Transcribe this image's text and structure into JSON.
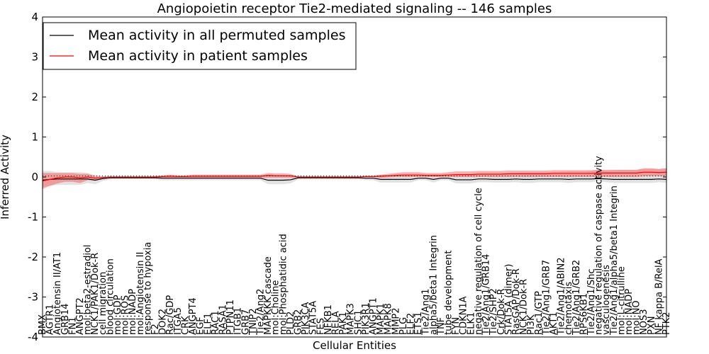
{
  "chart_data": {
    "type": "line",
    "title": "Angiopoietin receptor Tie2-mediated signaling -- 146 samples",
    "xlabel": "Cellular Entities",
    "ylabel": "Inferred Activity",
    "ylim": [
      -4,
      4
    ],
    "yticks": [
      4,
      3,
      2,
      1,
      0,
      -1,
      -2,
      -3,
      -4
    ],
    "grid": false,
    "legend_position": "top-left",
    "categories": [
      "BMX",
      "AGTR1",
      "Angiotensin II/AT1",
      "GRB14",
      "FN1",
      "ANGPT2",
      "mol:beta2-estradiol",
      "NCK1/PAK1/Dok-R",
      "cell migration",
      "blood circulation",
      "mol:GDP",
      "mol:ROS",
      "mol:NADP",
      "mol:Angiotensin II",
      "response to hypoxia",
      "F2",
      "DOK2",
      "Rac/GDP",
      "ITGA5",
      "CRK",
      "ANGPT4",
      "EGF",
      "ELF1",
      "RAC1",
      "RASA1",
      "PTPN11",
      "ITGB1",
      "GRB7",
      "TNIP2",
      "Tie2/Ang2",
      "MAPKKK cascade",
      "mol:Choline",
      "mol:Phosphatidic acid",
      "PLD2",
      "GRB2",
      "PIK3CA",
      "STAT5A",
      "FES",
      "NFKB1",
      "RELA",
      "PAK1",
      "MAPK3",
      "SHC1",
      "PIK3R1",
      "ANGPT1",
      "MAPK1",
      "MAPK8",
      "MMP2",
      "PLG",
      "ELF2",
      "ETS1",
      "Tie2/Ang1",
      "alpha5/beta1 Integrin",
      "TNF",
      "tube development",
      "FYN",
      "CDKN1A",
      "ELK1",
      "negative regulation of cell cycle",
      "Tie2/Ang1/GRB14",
      "Tie2/SHP2",
      "Crk/Dok-R",
      "STAT5A (dimer)",
      "RasGAP/Dok-R",
      "NCK1/Dok-R",
      "PI3K",
      "Rac1/GTP",
      "Tie2/Ang1/GRB7",
      "AKT1",
      "Tie2/Ang1/ABIN2",
      "chemotaxis",
      "Tie2/Ang1/GRB2",
      "RPS6KB1",
      "Tie2/Ang1/Shc",
      "negative regulation of caspase activity",
      "vasculogenesis",
      "Tie2/Ang1/alpha5/beta1 Integrin",
      "mol:L-citrulline",
      "mol:NADP",
      "mol:NO",
      "NOS3",
      "PXN",
      "NF kappa B/RelA",
      "PTK2"
    ],
    "series": [
      {
        "name": "Mean activity in all permuted samples",
        "color": "#000000",
        "values": [
          -0.08,
          -0.06,
          -0.05,
          -0.05,
          -0.05,
          -0.05,
          -0.05,
          -0.08,
          -0.04,
          -0.02,
          -0.02,
          -0.02,
          -0.02,
          -0.02,
          -0.02,
          -0.02,
          -0.03,
          -0.03,
          -0.03,
          -0.03,
          -0.03,
          -0.03,
          -0.03,
          -0.03,
          -0.03,
          -0.03,
          -0.03,
          -0.03,
          -0.03,
          -0.03,
          -0.08,
          -0.08,
          -0.08,
          -0.07,
          -0.02,
          -0.02,
          -0.02,
          -0.02,
          -0.02,
          -0.02,
          -0.02,
          -0.02,
          -0.02,
          -0.03,
          -0.03,
          -0.06,
          -0.06,
          -0.06,
          -0.06,
          -0.06,
          -0.03,
          -0.03,
          -0.06,
          -0.03,
          -0.03,
          -0.07,
          -0.07,
          -0.07,
          -0.05,
          -0.05,
          -0.06,
          -0.06,
          -0.06,
          -0.05,
          -0.06,
          -0.06,
          -0.05,
          -0.05,
          -0.05,
          -0.05,
          -0.06,
          -0.05,
          -0.05,
          -0.05,
          -0.04,
          -0.05,
          -0.06,
          -0.06,
          -0.06,
          -0.06,
          -0.06,
          -0.06,
          -0.05,
          -0.06
        ],
        "band_low": [
          -0.25,
          -0.22,
          -0.2,
          -0.2,
          -0.2,
          -0.2,
          -0.15,
          -0.18,
          -0.1,
          -0.06,
          -0.05,
          -0.05,
          -0.05,
          -0.05,
          -0.05,
          -0.06,
          -0.08,
          -0.08,
          -0.08,
          -0.08,
          -0.08,
          -0.08,
          -0.08,
          -0.08,
          -0.08,
          -0.08,
          -0.08,
          -0.08,
          -0.08,
          -0.08,
          -0.18,
          -0.18,
          -0.18,
          -0.16,
          -0.06,
          -0.06,
          -0.06,
          -0.06,
          -0.06,
          -0.06,
          -0.06,
          -0.06,
          -0.06,
          -0.08,
          -0.08,
          -0.14,
          -0.14,
          -0.14,
          -0.14,
          -0.14,
          -0.08,
          -0.08,
          -0.14,
          -0.08,
          -0.08,
          -0.16,
          -0.16,
          -0.16,
          -0.13,
          -0.13,
          -0.14,
          -0.14,
          -0.14,
          -0.13,
          -0.15,
          -0.15,
          -0.13,
          -0.13,
          -0.13,
          -0.13,
          -0.15,
          -0.13,
          -0.13,
          -0.13,
          -0.1,
          -0.13,
          -0.15,
          -0.15,
          -0.15,
          -0.15,
          -0.15,
          -0.15,
          -0.13,
          -0.15
        ],
        "band_high": [
          0.15,
          0.15,
          0.12,
          0.12,
          0.12,
          0.12,
          0.1,
          0.05,
          0.02,
          0.02,
          0.02,
          0.02,
          0.02,
          0.02,
          0.02,
          0.03,
          0.03,
          0.03,
          0.03,
          0.03,
          0.03,
          0.03,
          0.03,
          0.03,
          0.03,
          0.03,
          0.03,
          0.03,
          0.03,
          0.03,
          0.05,
          0.05,
          0.05,
          0.05,
          0.02,
          0.02,
          0.02,
          0.02,
          0.02,
          0.02,
          0.02,
          0.02,
          0.02,
          0.03,
          0.03,
          0.05,
          0.05,
          0.05,
          0.05,
          0.05,
          0.04,
          0.04,
          0.06,
          0.05,
          0.05,
          0.07,
          0.08,
          0.08,
          0.09,
          0.1,
          0.1,
          0.1,
          0.1,
          0.1,
          0.12,
          0.12,
          0.12,
          0.12,
          0.12,
          0.13,
          0.14,
          0.14,
          0.14,
          0.15,
          0.18,
          0.16,
          0.17,
          0.18,
          0.18,
          0.18,
          0.2,
          0.2,
          0.2,
          0.22
        ]
      },
      {
        "name": "Mean activity in patient samples",
        "color": "#ff0000",
        "values": [
          -0.1,
          -0.06,
          -0.02,
          0.0,
          0.0,
          -0.02,
          0.0,
          -0.03,
          -0.01,
          0.0,
          0.0,
          0.0,
          0.0,
          0.0,
          0.0,
          0.0,
          0.01,
          0.02,
          0.01,
          0.01,
          0.02,
          0.02,
          0.02,
          0.02,
          0.02,
          0.02,
          0.02,
          0.02,
          0.02,
          0.02,
          0.04,
          0.03,
          0.03,
          0.03,
          0.0,
          0.0,
          0.0,
          0.0,
          0.0,
          0.0,
          0.0,
          0.0,
          0.0,
          0.01,
          0.01,
          0.02,
          0.03,
          0.04,
          0.05,
          0.05,
          0.05,
          0.04,
          0.04,
          0.04,
          0.05,
          0.06,
          0.06,
          0.06,
          0.07,
          0.07,
          0.07,
          0.07,
          0.08,
          0.08,
          0.08,
          0.08,
          0.08,
          0.08,
          0.09,
          0.09,
          0.09,
          0.09,
          0.09,
          0.09,
          0.1,
          0.1,
          0.1,
          0.1,
          0.1,
          0.1,
          0.12,
          0.12,
          0.11,
          0.12
        ],
        "band_low": [
          -0.3,
          -0.22,
          -0.16,
          -0.12,
          -0.12,
          -0.15,
          -0.08,
          -0.08,
          -0.03,
          -0.01,
          -0.01,
          -0.01,
          -0.01,
          -0.01,
          -0.01,
          -0.01,
          -0.02,
          -0.02,
          -0.02,
          -0.02,
          -0.02,
          -0.02,
          -0.02,
          -0.02,
          -0.02,
          -0.02,
          -0.02,
          -0.02,
          -0.02,
          -0.02,
          -0.02,
          -0.02,
          -0.02,
          -0.02,
          -0.01,
          -0.01,
          -0.01,
          -0.01,
          -0.01,
          -0.01,
          -0.01,
          -0.01,
          -0.01,
          -0.01,
          -0.01,
          -0.02,
          -0.01,
          0.0,
          0.0,
          0.0,
          0.0,
          0.0,
          0.0,
          0.0,
          0.0,
          0.0,
          0.0,
          0.0,
          0.0,
          0.0,
          0.0,
          0.0,
          0.0,
          0.0,
          0.0,
          0.0,
          0.0,
          0.0,
          0.0,
          0.0,
          0.0,
          0.0,
          0.0,
          0.0,
          0.0,
          0.0,
          0.0,
          0.0,
          0.0,
          0.0,
          0.02,
          0.02,
          0.02,
          0.02
        ],
        "band_high": [
          0.1,
          0.1,
          0.1,
          0.1,
          0.1,
          0.08,
          0.08,
          0.02,
          0.01,
          0.01,
          0.01,
          0.01,
          0.01,
          0.01,
          0.01,
          0.02,
          0.04,
          0.06,
          0.04,
          0.04,
          0.06,
          0.06,
          0.06,
          0.06,
          0.06,
          0.06,
          0.06,
          0.06,
          0.06,
          0.06,
          0.1,
          0.09,
          0.09,
          0.08,
          0.01,
          0.01,
          0.01,
          0.01,
          0.01,
          0.01,
          0.01,
          0.01,
          0.01,
          0.03,
          0.03,
          0.06,
          0.08,
          0.1,
          0.12,
          0.12,
          0.12,
          0.1,
          0.1,
          0.1,
          0.12,
          0.14,
          0.14,
          0.14,
          0.15,
          0.15,
          0.15,
          0.15,
          0.16,
          0.16,
          0.16,
          0.16,
          0.16,
          0.16,
          0.17,
          0.17,
          0.17,
          0.17,
          0.17,
          0.17,
          0.18,
          0.18,
          0.18,
          0.18,
          0.18,
          0.18,
          0.22,
          0.22,
          0.2,
          0.22
        ]
      }
    ]
  }
}
